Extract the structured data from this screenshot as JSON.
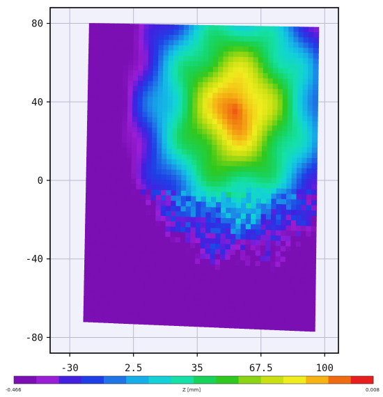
{
  "chart_data": {
    "type": "heatmap",
    "title": "",
    "xlabel": "",
    "ylabel": "",
    "x_ticks": [
      "-30",
      "2.5",
      "35",
      "67.5",
      "100"
    ],
    "x_tick_values": [
      -30,
      2.5,
      35,
      67.5,
      100
    ],
    "y_ticks": [
      "80",
      "40",
      "0",
      "-40",
      "-80"
    ],
    "y_tick_values": [
      80,
      40,
      0,
      -40,
      -80
    ],
    "xlim": [
      -40,
      107
    ],
    "ylim": [
      -88,
      88
    ],
    "grid": true,
    "colorbar": {
      "label": "Z [mm]",
      "min_label": "-0.466",
      "max_label": "0.008",
      "min": -0.466,
      "max": 0.008,
      "colors": [
        "#7b0fb4",
        "#9a1ed6",
        "#4320e0",
        "#1f3fe6",
        "#1f74e6",
        "#15aee8",
        "#12d2d8",
        "#15e0a6",
        "#18d35a",
        "#2fc81e",
        "#8ad414",
        "#c9e012",
        "#f0ec1e",
        "#f5b414",
        "#f06b10",
        "#e81e1e"
      ]
    },
    "surface_corners": {
      "top_left": [
        -20,
        80
      ],
      "top_right": [
        97,
        78
      ],
      "bottom_right": [
        95,
        -77
      ],
      "bottom_left": [
        -23,
        -72
      ]
    },
    "z_field_note_fields": {
      "peak_center": [
        55,
        36
      ],
      "low_corner": [
        -25,
        -60
      ]
    }
  }
}
